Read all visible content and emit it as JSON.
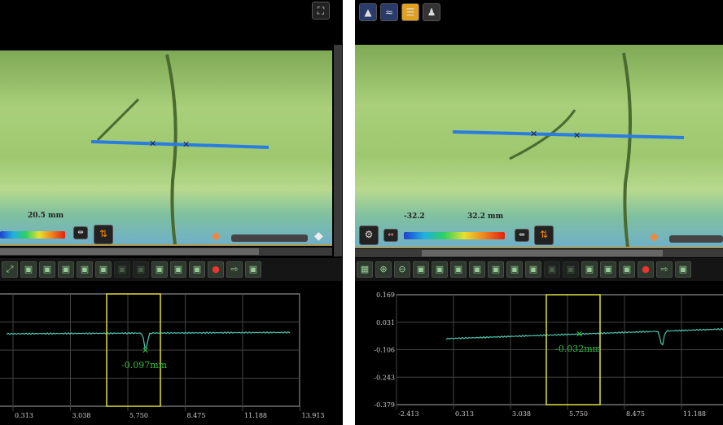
{
  "left": {
    "scale_label": "20.5 mm",
    "toolbar_icons": [
      "zoom-fit",
      "zoom-region",
      "zoom-region-alt",
      "grid-view",
      "image-view",
      "profile-view",
      "disabled-a",
      "disabled-b",
      "measure-1",
      "measure-2",
      "measure-3",
      "record",
      "export",
      "report"
    ],
    "chart": {
      "x_unit": "mm",
      "x_ticks": [
        "0.313",
        "3.038",
        "5.750",
        "8.475",
        "11.188",
        "13.913"
      ],
      "readout": "-0.097mm"
    }
  },
  "right": {
    "top_icons": [
      "height-map",
      "profile",
      "layers",
      "3d-view"
    ],
    "scale_min": "-32.2",
    "scale_max": "32.2 mm",
    "toolbar_icons": [
      "layout",
      "zoom-in",
      "zoom-out",
      "zoom-x-in",
      "zoom-y-in",
      "zoom-region",
      "zoom-region-alt",
      "grid-view",
      "image-view",
      "profile-view",
      "disabled-a",
      "disabled-b",
      "measure-1",
      "measure-2",
      "measure-3",
      "record",
      "export",
      "report"
    ],
    "chart": {
      "y_unit": "mm",
      "y_ticks": [
        "0.169",
        "0.031",
        "-0.106",
        "-0.243",
        "-0.379"
      ],
      "x_ticks": [
        "-2.413",
        "0.313",
        "3.038",
        "5.750",
        "8.475",
        "11.188"
      ],
      "readout": "-0.032mm"
    }
  },
  "colors": {
    "profile_line": "#4fc8b0",
    "window": "#e0e040",
    "readout": "#30c040",
    "measure_line": "#2a7ce0"
  }
}
